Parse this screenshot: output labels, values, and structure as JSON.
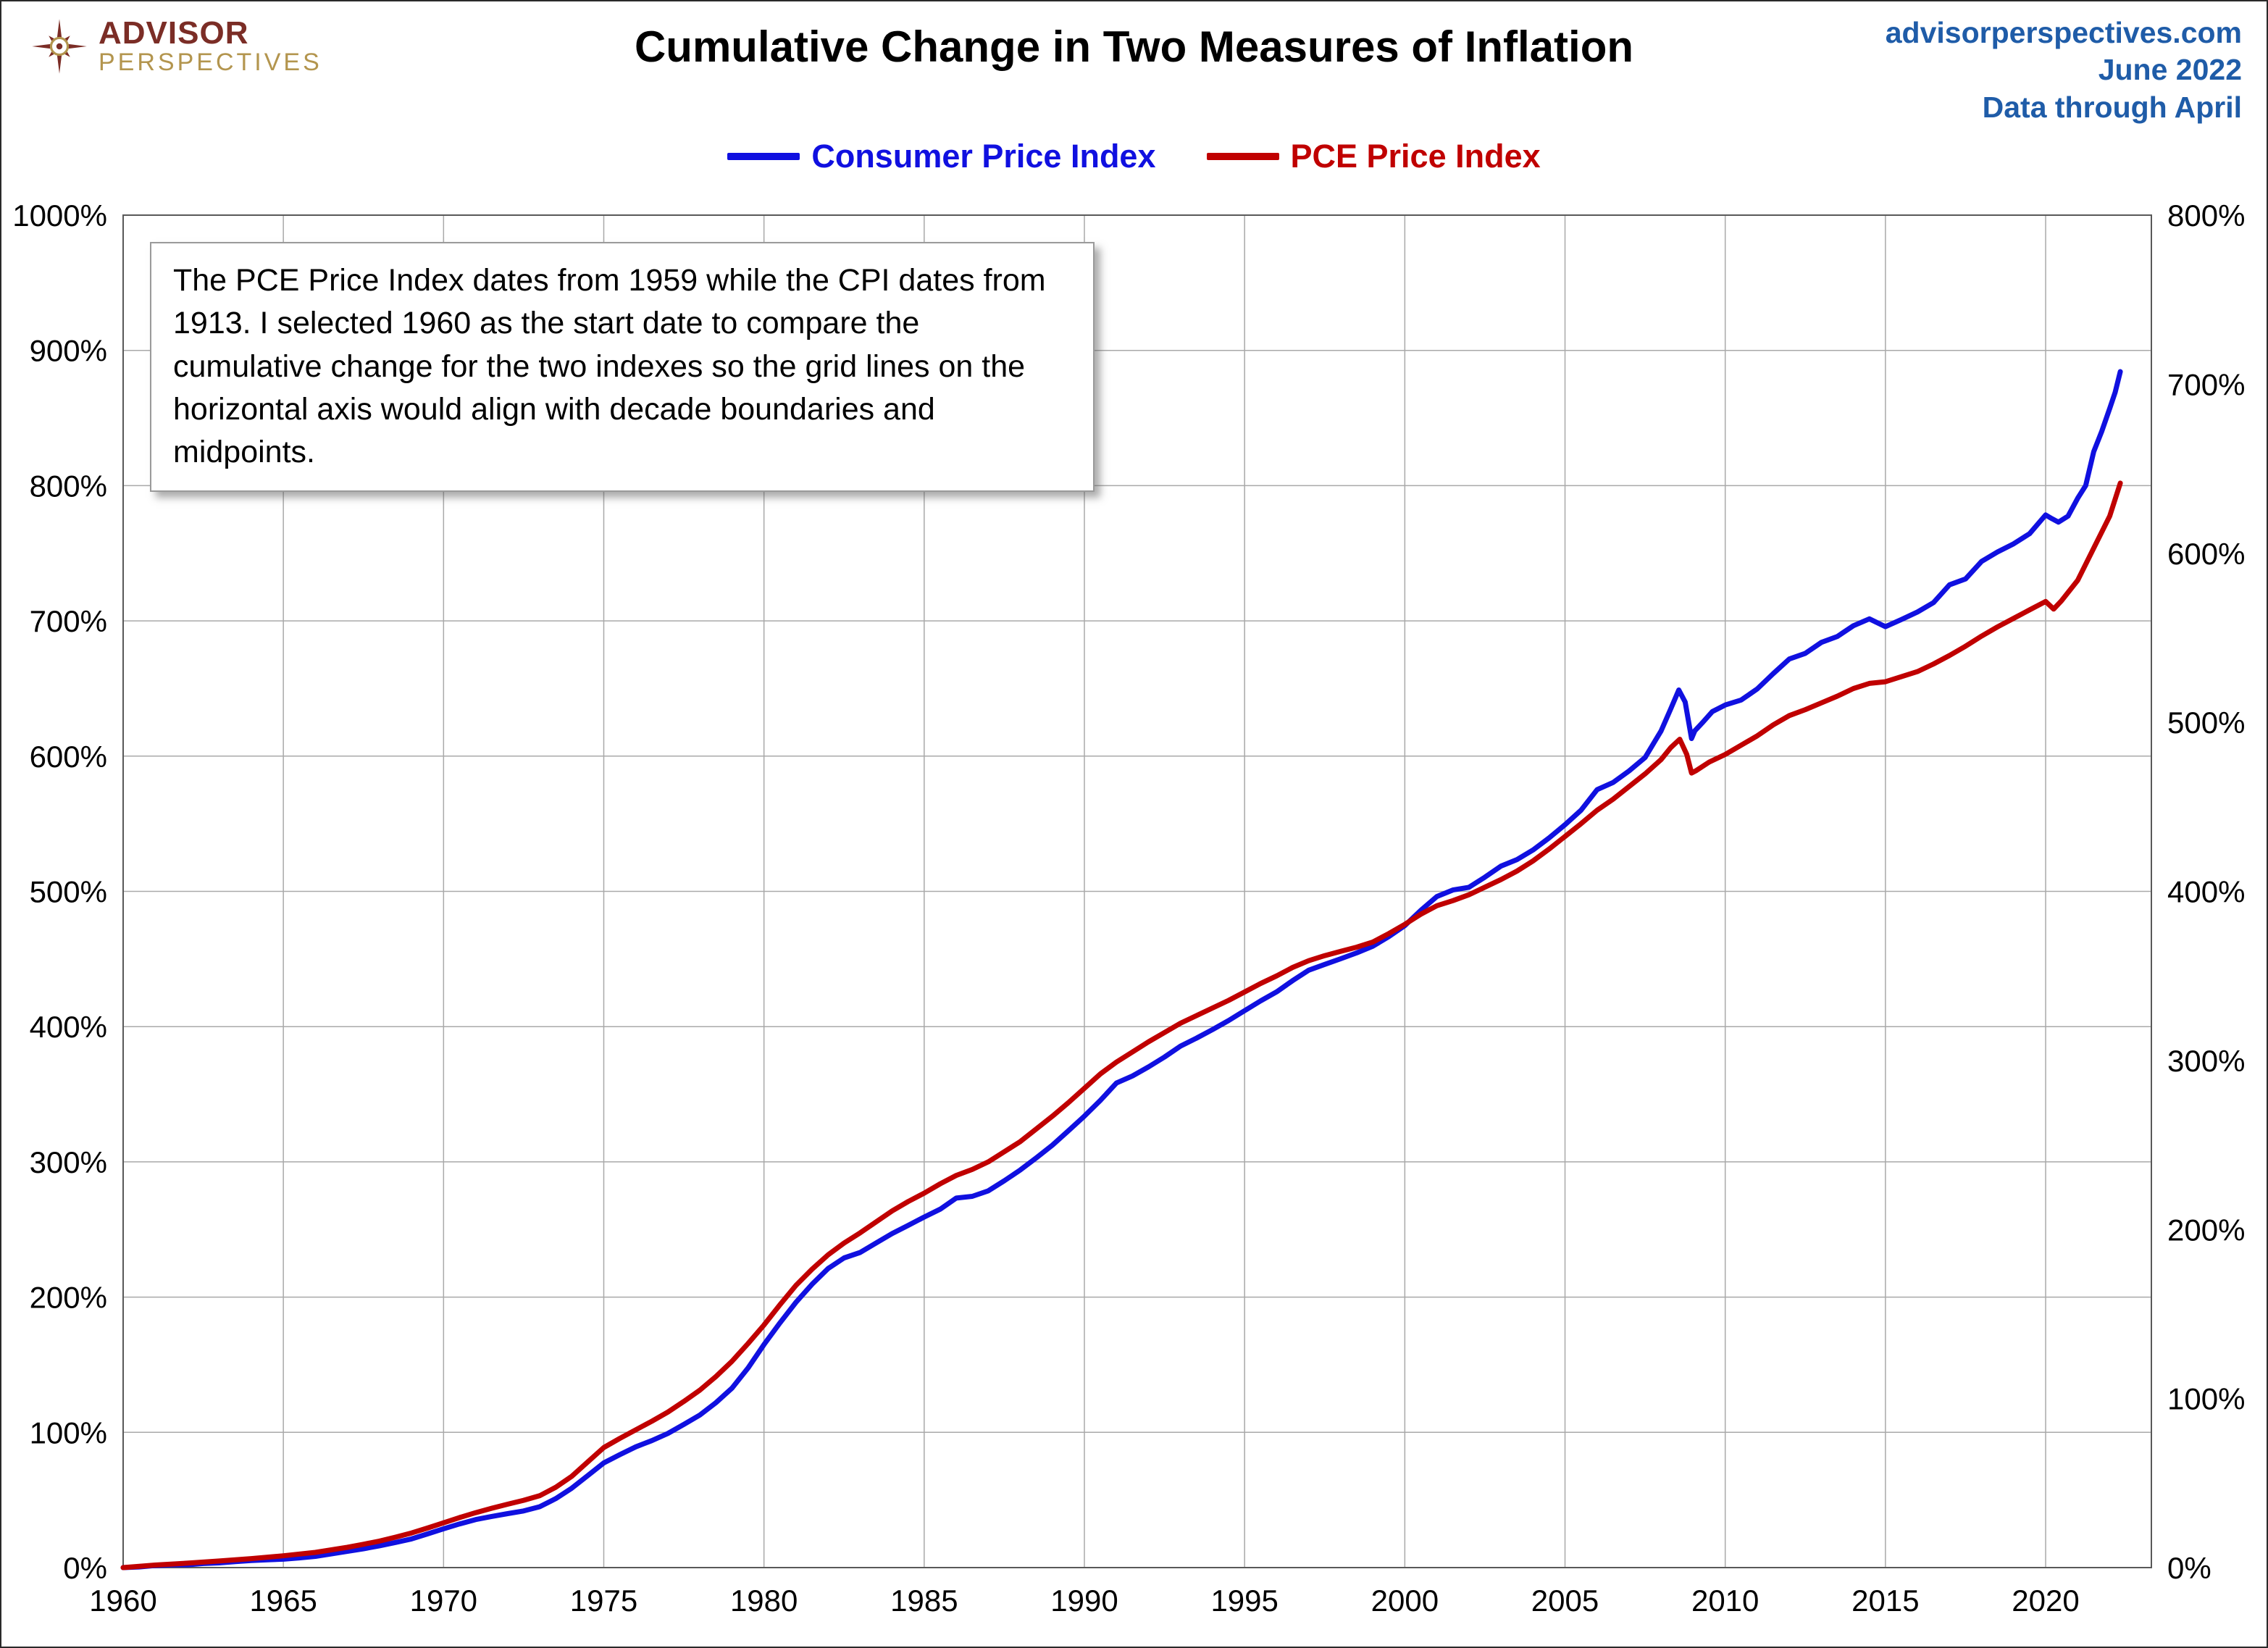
{
  "header": {
    "logo": {
      "line1": "ADVISOR",
      "line2": "PERSPECTIVES",
      "icon": "compass-rose-icon",
      "maroon": "#7B2D26",
      "gold": "#B3954E"
    },
    "title": "Cumulative Change in Two Measures of Inflation",
    "site": "advisorperspectives.com",
    "date": "June 2022",
    "data_through": "Data through April",
    "header_blue": "#1F5CA8"
  },
  "annotation": {
    "text": "The PCE Price Index dates from 1959 while the CPI dates from 1913. I selected 1960 as the start date to compare the cumulative change for the two indexes so the grid lines on the horizontal axis would align with decade boundaries and midpoints."
  },
  "chart_data": {
    "type": "line",
    "title": "Cumulative Change in Two Measures of Inflation",
    "x_axis": {
      "range": [
        1960,
        2023.3
      ],
      "ticks": [
        1960,
        1965,
        1970,
        1975,
        1980,
        1985,
        1990,
        1995,
        2000,
        2005,
        2010,
        2015,
        2020
      ],
      "tick_labels": [
        "1960",
        "1965",
        "1970",
        "1975",
        "1980",
        "1985",
        "1990",
        "1995",
        "2000",
        "2005",
        "2010",
        "2015",
        "2020"
      ]
    },
    "left_axis": {
      "range": [
        0,
        1000
      ],
      "ticks": [
        0,
        100,
        200,
        300,
        400,
        500,
        600,
        700,
        800,
        900,
        1000
      ],
      "tick_labels": [
        "0%",
        "100%",
        "200%",
        "300%",
        "400%",
        "500%",
        "600%",
        "700%",
        "800%",
        "900%",
        "1000%"
      ]
    },
    "right_axis": {
      "range": [
        0,
        800
      ],
      "ticks": [
        0,
        100,
        200,
        300,
        400,
        500,
        600,
        700,
        800
      ],
      "tick_labels": [
        "0%",
        "100%",
        "200%",
        "300%",
        "400%",
        "500%",
        "600%",
        "700%",
        "800%"
      ]
    },
    "grid": {
      "show": true,
      "color": "#A9A9A9"
    },
    "plot_border_color": "#595959",
    "legend_position": "top",
    "series": [
      {
        "name": "Consumer Price Index",
        "axis": "left",
        "color": "#1010E0",
        "width": 7,
        "points": [
          [
            1960,
            0
          ],
          [
            1960.5,
            0.5
          ],
          [
            1961,
            1.5
          ],
          [
            1961.5,
            2.0
          ],
          [
            1962,
            2.1
          ],
          [
            1962.5,
            3.0
          ],
          [
            1963,
            3.5
          ],
          [
            1963.5,
            4.4
          ],
          [
            1964,
            5.2
          ],
          [
            1964.5,
            5.8
          ],
          [
            1965,
            6.2
          ],
          [
            1965.5,
            7.2
          ],
          [
            1966,
            8.3
          ],
          [
            1966.5,
            10.2
          ],
          [
            1967,
            12.0
          ],
          [
            1967.5,
            13.9
          ],
          [
            1968,
            16.1
          ],
          [
            1968.5,
            18.6
          ],
          [
            1969,
            21.2
          ],
          [
            1969.5,
            24.9
          ],
          [
            1970,
            28.7
          ],
          [
            1970.5,
            32.3
          ],
          [
            1971,
            35.5
          ],
          [
            1971.5,
            37.8
          ],
          [
            1972,
            39.9
          ],
          [
            1972.5,
            41.9
          ],
          [
            1973,
            45.0
          ],
          [
            1973.5,
            51.0
          ],
          [
            1974,
            58.7
          ],
          [
            1974.5,
            68.0
          ],
          [
            1975,
            77.4
          ],
          [
            1975.5,
            83.5
          ],
          [
            1976,
            89.3
          ],
          [
            1976.5,
            93.9
          ],
          [
            1977,
            99.2
          ],
          [
            1977.5,
            105.9
          ],
          [
            1978,
            112.8
          ],
          [
            1978.5,
            121.9
          ],
          [
            1979,
            132.6
          ],
          [
            1979.5,
            147.5
          ],
          [
            1980,
            164.9
          ],
          [
            1980.5,
            181.0
          ],
          [
            1981,
            196.2
          ],
          [
            1981.5,
            209.5
          ],
          [
            1982,
            221.1
          ],
          [
            1982.5,
            229.0
          ],
          [
            1983,
            233.0
          ],
          [
            1983.5,
            240.0
          ],
          [
            1984,
            247.0
          ],
          [
            1984.5,
            253.0
          ],
          [
            1985,
            259.2
          ],
          [
            1985.5,
            265.0
          ],
          [
            1986,
            273.2
          ],
          [
            1986.5,
            274.5
          ],
          [
            1987,
            278.6
          ],
          [
            1987.5,
            286.0
          ],
          [
            1988,
            294.0
          ],
          [
            1988.5,
            303.0
          ],
          [
            1989,
            312.3
          ],
          [
            1989.5,
            323.0
          ],
          [
            1990,
            333.8
          ],
          [
            1990.5,
            345.5
          ],
          [
            1991,
            358.3
          ],
          [
            1991.5,
            363.5
          ],
          [
            1992,
            370.2
          ],
          [
            1992.5,
            377.5
          ],
          [
            1993,
            385.6
          ],
          [
            1993.5,
            391.5
          ],
          [
            1994,
            397.8
          ],
          [
            1994.5,
            404.5
          ],
          [
            1995,
            411.8
          ],
          [
            1995.5,
            419.0
          ],
          [
            1996,
            425.7
          ],
          [
            1996.5,
            434.0
          ],
          [
            1997,
            441.7
          ],
          [
            1997.5,
            446.0
          ],
          [
            1998,
            450.2
          ],
          [
            1998.5,
            454.5
          ],
          [
            1999,
            459.4
          ],
          [
            1999.5,
            466.5
          ],
          [
            2000,
            474.7
          ],
          [
            2000.5,
            486.0
          ],
          [
            2001,
            496.2
          ],
          [
            2001.5,
            501.0
          ],
          [
            2002,
            503.0
          ],
          [
            2002.5,
            510.5
          ],
          [
            2003,
            518.7
          ],
          [
            2003.5,
            523.5
          ],
          [
            2004,
            530.6
          ],
          [
            2004.5,
            539.5
          ],
          [
            2005,
            549.3
          ],
          [
            2005.5,
            560.0
          ],
          [
            2006,
            575.2
          ],
          [
            2006.5,
            580.5
          ],
          [
            2007,
            589.1
          ],
          [
            2007.5,
            599.0
          ],
          [
            2008,
            618.7
          ],
          [
            2008.3,
            635.0
          ],
          [
            2008.55,
            648.9
          ],
          [
            2008.75,
            640.0
          ],
          [
            2008.95,
            613.0
          ],
          [
            2009.05,
            618.7
          ],
          [
            2009.3,
            625.0
          ],
          [
            2009.6,
            633.0
          ],
          [
            2010,
            637.8
          ],
          [
            2010.5,
            641.5
          ],
          [
            2011,
            649.7
          ],
          [
            2011.5,
            661.0
          ],
          [
            2012,
            671.8
          ],
          [
            2012.5,
            676.0
          ],
          [
            2013,
            684.1
          ],
          [
            2013.5,
            688.5
          ],
          [
            2014,
            696.4
          ],
          [
            2014.5,
            701.5
          ],
          [
            2015,
            695.7
          ],
          [
            2015.5,
            701.0
          ],
          [
            2016,
            706.6
          ],
          [
            2016.5,
            713.5
          ],
          [
            2017,
            726.7
          ],
          [
            2017.5,
            731.0
          ],
          [
            2018,
            744.0
          ],
          [
            2018.5,
            751.0
          ],
          [
            2019,
            757.0
          ],
          [
            2019.5,
            764.5
          ],
          [
            2020,
            778.3
          ],
          [
            2020.2,
            775.5
          ],
          [
            2020.4,
            773.0
          ],
          [
            2020.7,
            777.5
          ],
          [
            2021,
            790.7
          ],
          [
            2021.25,
            800.0
          ],
          [
            2021.5,
            825.1
          ],
          [
            2021.75,
            840.0
          ],
          [
            2022,
            857.1
          ],
          [
            2022.17,
            869.0
          ],
          [
            2022.33,
            884.3
          ]
        ]
      },
      {
        "name": "PCE Price Index",
        "axis": "right",
        "color": "#C00000",
        "width": 7,
        "points": [
          [
            1960,
            0
          ],
          [
            1961,
            1.5
          ],
          [
            1962,
            2.6
          ],
          [
            1963,
            3.9
          ],
          [
            1964,
            5.3
          ],
          [
            1965,
            7.0
          ],
          [
            1965.5,
            8.0
          ],
          [
            1966,
            9.0
          ],
          [
            1966.5,
            10.5
          ],
          [
            1967,
            12.0
          ],
          [
            1967.5,
            13.8
          ],
          [
            1968,
            15.7
          ],
          [
            1968.5,
            18.0
          ],
          [
            1969,
            20.5
          ],
          [
            1969.5,
            23.4
          ],
          [
            1970,
            26.5
          ],
          [
            1970.5,
            29.6
          ],
          [
            1971,
            32.5
          ],
          [
            1971.5,
            35.1
          ],
          [
            1972,
            37.5
          ],
          [
            1972.5,
            39.8
          ],
          [
            1973,
            42.5
          ],
          [
            1973.5,
            47.5
          ],
          [
            1974,
            54.0
          ],
          [
            1974.5,
            62.5
          ],
          [
            1975,
            71.0
          ],
          [
            1975.5,
            76.4
          ],
          [
            1976,
            81.5
          ],
          [
            1976.5,
            86.6
          ],
          [
            1977,
            92.0
          ],
          [
            1977.5,
            98.3
          ],
          [
            1978,
            105.0
          ],
          [
            1978.5,
            113.0
          ],
          [
            1979,
            122.0
          ],
          [
            1979.5,
            132.5
          ],
          [
            1980,
            143.5
          ],
          [
            1980.5,
            155.5
          ],
          [
            1981,
            167.0
          ],
          [
            1981.5,
            176.5
          ],
          [
            1982,
            185.0
          ],
          [
            1982.5,
            192.0
          ],
          [
            1983,
            198.0
          ],
          [
            1983.5,
            204.5
          ],
          [
            1984,
            211.0
          ],
          [
            1984.5,
            216.5
          ],
          [
            1985,
            221.5
          ],
          [
            1985.5,
            227.0
          ],
          [
            1986,
            232.0
          ],
          [
            1986.5,
            235.5
          ],
          [
            1987,
            240.0
          ],
          [
            1987.5,
            246.0
          ],
          [
            1988,
            252.0
          ],
          [
            1988.5,
            259.5
          ],
          [
            1989,
            267.0
          ],
          [
            1989.5,
            275.0
          ],
          [
            1990,
            283.5
          ],
          [
            1990.5,
            292.0
          ],
          [
            1991,
            299.0
          ],
          [
            1991.5,
            305.0
          ],
          [
            1992,
            311.0
          ],
          [
            1992.5,
            316.5
          ],
          [
            1993,
            322.0
          ],
          [
            1993.5,
            326.5
          ],
          [
            1994,
            331.0
          ],
          [
            1994.5,
            335.5
          ],
          [
            1995,
            340.5
          ],
          [
            1995.5,
            345.5
          ],
          [
            1996,
            350.0
          ],
          [
            1996.5,
            355.0
          ],
          [
            1997,
            359.0
          ],
          [
            1997.5,
            362.0
          ],
          [
            1998,
            364.5
          ],
          [
            1998.5,
            367.0
          ],
          [
            1999,
            370.0
          ],
          [
            1999.5,
            375.0
          ],
          [
            2000,
            380.5
          ],
          [
            2000.5,
            386.5
          ],
          [
            2001,
            391.5
          ],
          [
            2001.5,
            394.5
          ],
          [
            2002,
            398.0
          ],
          [
            2002.5,
            402.5
          ],
          [
            2003,
            407.0
          ],
          [
            2003.5,
            412.0
          ],
          [
            2004,
            418.0
          ],
          [
            2004.5,
            425.0
          ],
          [
            2005,
            432.5
          ],
          [
            2005.5,
            440.0
          ],
          [
            2006,
            448.0
          ],
          [
            2006.5,
            454.5
          ],
          [
            2007,
            462.0
          ],
          [
            2007.5,
            469.5
          ],
          [
            2008,
            478.0
          ],
          [
            2008.3,
            485.0
          ],
          [
            2008.58,
            490.0
          ],
          [
            2008.8,
            481.0
          ],
          [
            2008.95,
            470.0
          ],
          [
            2009.1,
            471.5
          ],
          [
            2009.5,
            476.5
          ],
          [
            2010,
            481.0
          ],
          [
            2010.5,
            486.5
          ],
          [
            2011,
            492.0
          ],
          [
            2011.5,
            498.5
          ],
          [
            2012,
            504.0
          ],
          [
            2012.5,
            507.5
          ],
          [
            2013,
            511.5
          ],
          [
            2013.5,
            515.5
          ],
          [
            2014,
            520.0
          ],
          [
            2014.5,
            523.0
          ],
          [
            2015,
            524.0
          ],
          [
            2015.5,
            527.0
          ],
          [
            2016,
            530.0
          ],
          [
            2016.5,
            534.5
          ],
          [
            2017,
            539.5
          ],
          [
            2017.5,
            545.0
          ],
          [
            2018,
            551.0
          ],
          [
            2018.5,
            556.5
          ],
          [
            2019,
            561.5
          ],
          [
            2019.5,
            566.5
          ],
          [
            2020,
            571.5
          ],
          [
            2020.25,
            567.0
          ],
          [
            2020.5,
            572.0
          ],
          [
            2021,
            584.0
          ],
          [
            2021.5,
            603.0
          ],
          [
            2022,
            622.0
          ],
          [
            2022.33,
            641.5
          ]
        ]
      }
    ]
  }
}
